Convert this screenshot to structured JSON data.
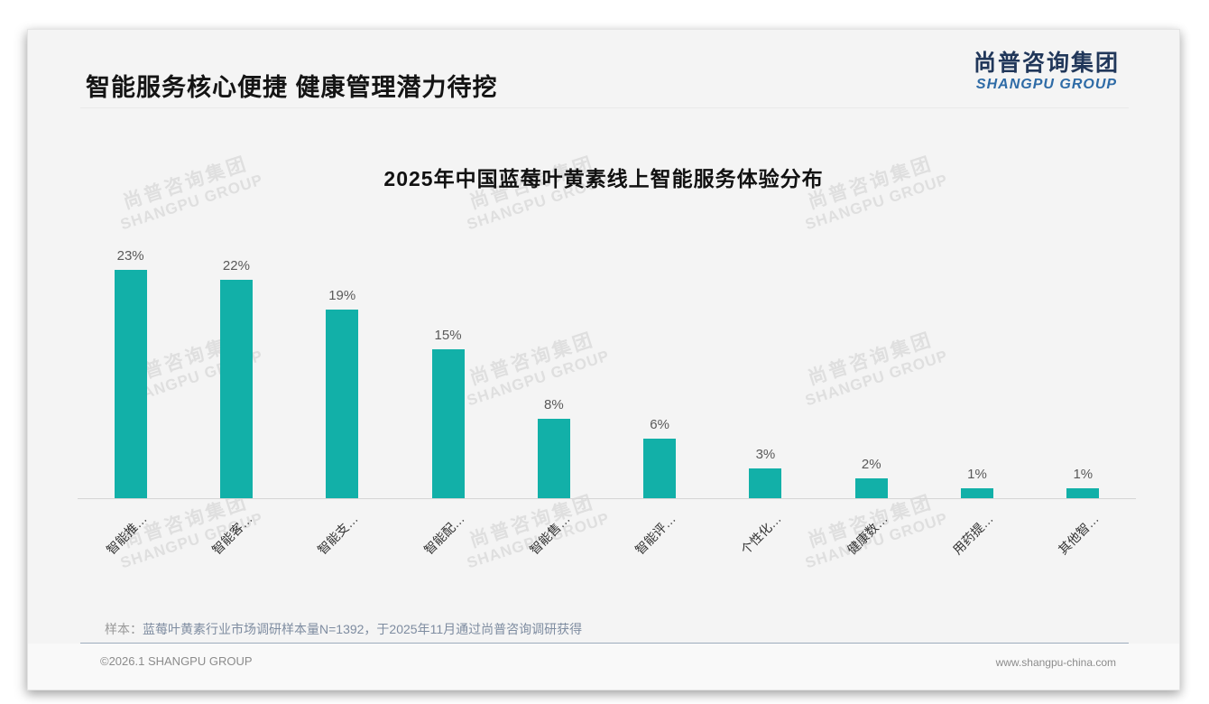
{
  "slide": {
    "header": {
      "title": "智能服务核心便捷 健康管理潜力待挖"
    },
    "logo": {
      "cn": "尚普咨询集团",
      "en": "SHANGPU GROUP"
    },
    "watermark": {
      "cn": "尚普咨询集团",
      "en": "SHANGPU GROUP"
    },
    "note": {
      "prefix": "样本：",
      "text": "蓝莓叶黄素行业市场调研样本量N=1392，于2025年11月通过尚普咨询调研获得"
    },
    "footer": {
      "left": "©2026.1 SHANGPU GROUP",
      "right": "www.shangpu-china.com"
    }
  },
  "chart_data": {
    "type": "bar",
    "title": "2025年中国蓝莓叶黄素线上智能服务体验分布",
    "categories": [
      "智能推…",
      "智能客…",
      "智能支…",
      "智能配…",
      "智能售…",
      "智能评…",
      "个性化…",
      "健康数…",
      "用药提…",
      "其他智…"
    ],
    "values": [
      23,
      22,
      19,
      15,
      8,
      6,
      3,
      2,
      1,
      1
    ],
    "unit": "%",
    "bar_color": "#12b0a8",
    "value_label_color": "#595959",
    "axis_line_color": "#d5d5d5",
    "ylim": [
      0,
      25
    ],
    "grid": false,
    "legend": false,
    "xlabel": "",
    "ylabel": ""
  }
}
